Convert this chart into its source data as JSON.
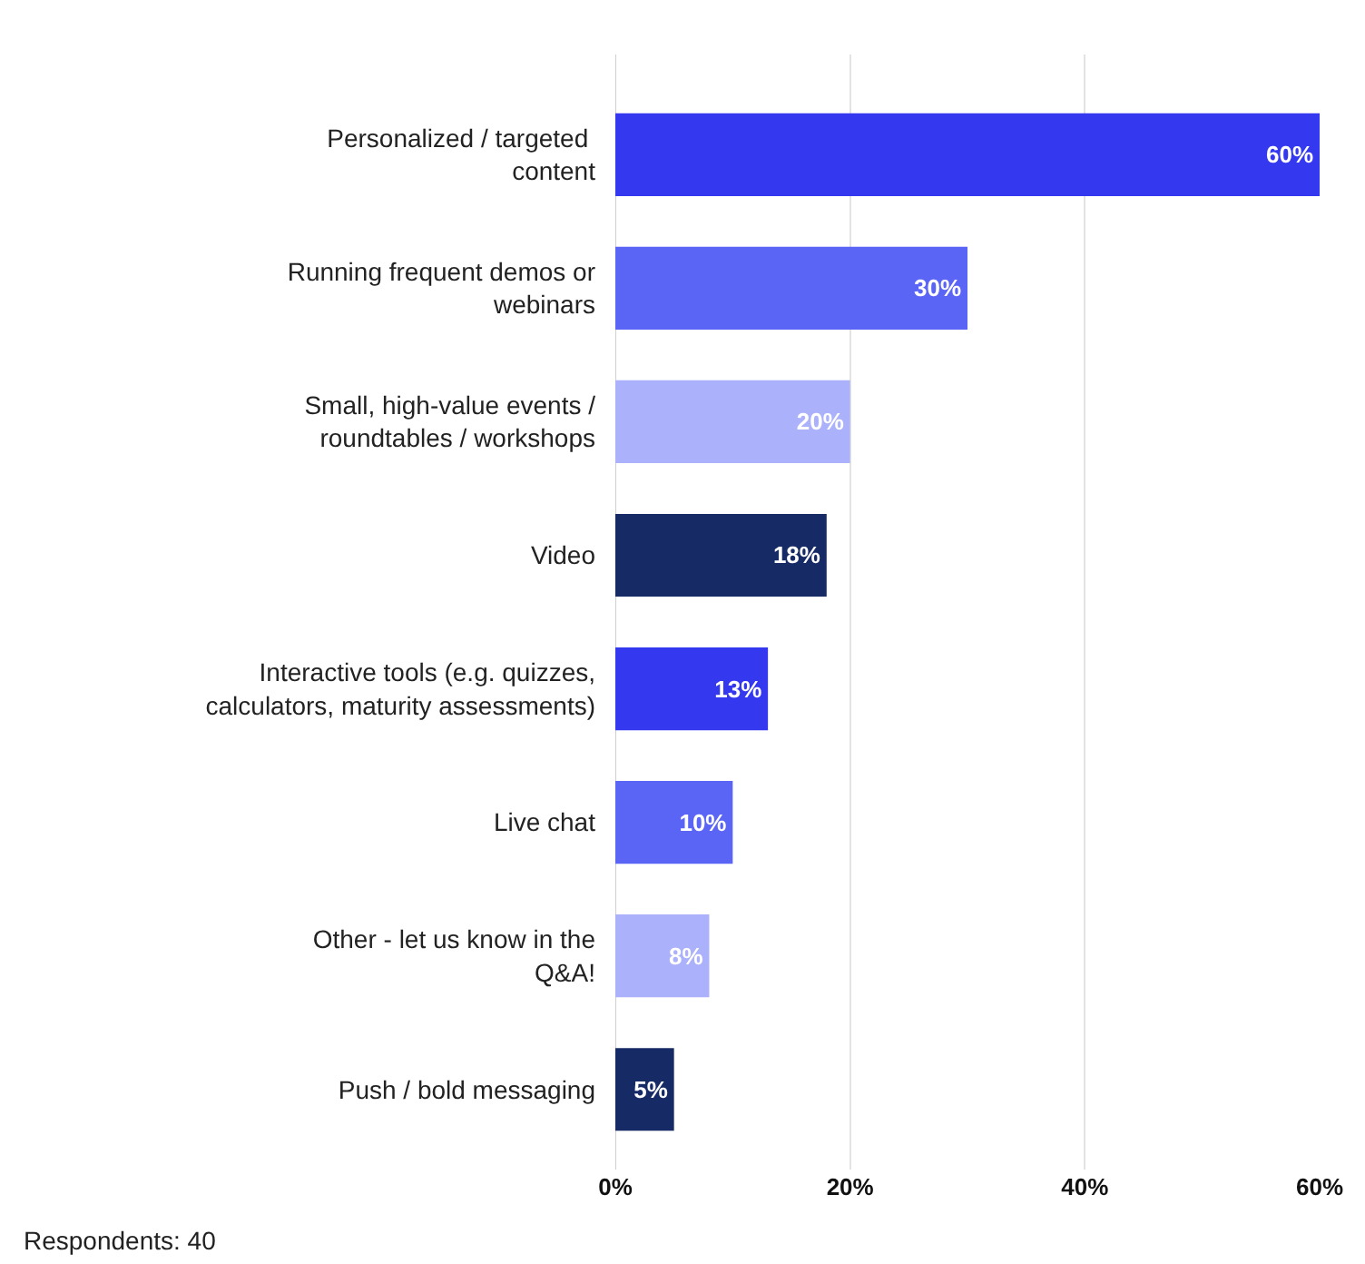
{
  "chart_data": {
    "type": "bar",
    "orientation": "horizontal",
    "categories": [
      "Personalized / targeted \ncontent",
      "Running frequent demos or\nwebinars",
      "Small, high-value events /\nroundtables / workshops",
      "Video",
      "Interactive tools (e.g. quizzes,\ncalculators, maturity assessments)",
      "Live chat",
      "Other - let us know in the\nQ&A!",
      "Push / bold messaging"
    ],
    "values": [
      60,
      30,
      20,
      18,
      13,
      10,
      8,
      5
    ],
    "value_labels": [
      "60%",
      "30%",
      "20%",
      "18%",
      "13%",
      "10%",
      "8%",
      "5%"
    ],
    "colors": [
      "#3439f0",
      "#5a65f6",
      "#abb1fb",
      "#162a66",
      "#3439f0",
      "#5a65f6",
      "#abb1fb",
      "#162a66"
    ],
    "xlim": [
      0,
      60
    ],
    "xticks": [
      {
        "value": 0,
        "label": "0%"
      },
      {
        "value": 20,
        "label": "20%"
      },
      {
        "value": 40,
        "label": "40%"
      },
      {
        "value": 60,
        "label": "60%"
      }
    ],
    "grid": "x",
    "annotations": [
      "Respondents: 40"
    ]
  }
}
